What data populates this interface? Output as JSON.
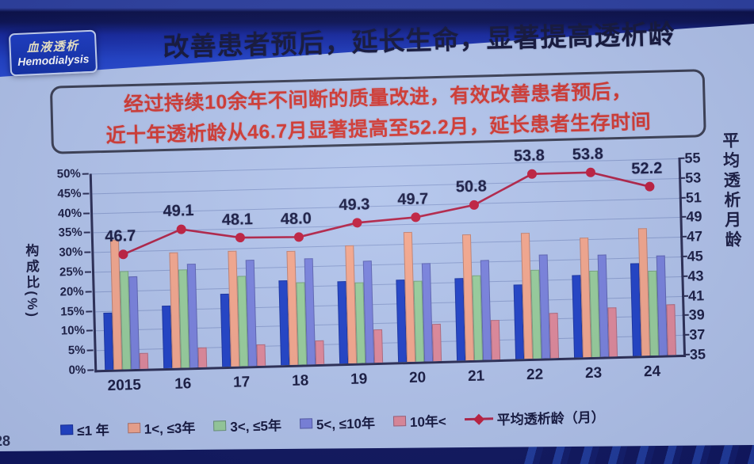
{
  "page": {
    "page_number": "28"
  },
  "badge": {
    "line1": "血液透析",
    "line2": "Hemodialysis"
  },
  "header": {
    "title": "改善患者预后，延长生命，显著提高透析龄"
  },
  "highlight_box": {
    "line1": "经过持续10余年不间断的质量改进，有效改善患者预后，",
    "line2": "近十年透析龄从46.7月显著提高至52.2月，延长患者生存时间"
  },
  "colors": {
    "slide_bg": "#b3c5ec",
    "top_band_blue": "#2142c8",
    "deep_navy": "#0b1048",
    "badge_blue": "#1d3cc0",
    "title_text": "#14173b",
    "highlight_text": "#d23a33",
    "axis_text": "#1b1e44",
    "line_series": "#b22448"
  },
  "chart_data": {
    "type": "bar+line combo",
    "categories": [
      "2015",
      "16",
      "17",
      "18",
      "19",
      "20",
      "21",
      "22",
      "23",
      "24"
    ],
    "series": [
      {
        "name": "≤1 年",
        "type": "bar",
        "color": "#2143c8",
        "values": [
          14.5,
          16,
          18.5,
          21.5,
          21,
          21,
          21,
          19,
          21,
          23.5
        ]
      },
      {
        "name": "1<, ≤3年",
        "type": "bar",
        "color": "#f5a88e",
        "values": [
          33,
          29.5,
          29.5,
          29,
          30,
          33,
          32,
          32,
          30.5,
          32.5
        ]
      },
      {
        "name": "3<, ≤5年",
        "type": "bar",
        "color": "#99cf9c",
        "values": [
          25,
          25,
          23,
          21,
          20.5,
          20.5,
          21.5,
          22.5,
          22,
          21.5
        ]
      },
      {
        "name": "5<, ≤10年",
        "type": "bar",
        "color": "#7a83de",
        "values": [
          23.5,
          26.5,
          27,
          27,
          26,
          25,
          25.5,
          26.5,
          26,
          25.5
        ]
      },
      {
        "name": "10年<",
        "type": "bar",
        "color": "#e18a9b",
        "values": [
          4,
          5,
          5.5,
          6,
          8.5,
          9.5,
          10,
          11.5,
          12.5,
          13
        ]
      },
      {
        "name": "平均透析龄（月）",
        "type": "line",
        "color": "#b22448",
        "marker_color": "#c0203f",
        "axis": "right",
        "values": [
          46.7,
          49.1,
          48.1,
          48.0,
          49.3,
          49.7,
          50.8,
          53.8,
          53.8,
          52.2
        ],
        "point_labels": [
          "46.7",
          "49.1",
          "48.1",
          "48.0",
          "49.3",
          "49.7",
          "50.8",
          "53.8",
          "53.8",
          "52.2"
        ]
      }
    ],
    "left_axis": {
      "label": "构成比(%)",
      "min": 0,
      "max": 50,
      "step": 5,
      "tick_labels": [
        "0%",
        "5%",
        "10%",
        "15%",
        "20%",
        "25%",
        "30%",
        "35%",
        "40%",
        "45%",
        "50%"
      ]
    },
    "right_axis": {
      "label": "平均透析月龄",
      "min": 35,
      "max": 55,
      "step": 2,
      "tick_labels": [
        "35",
        "37",
        "39",
        "41",
        "43",
        "45",
        "47",
        "49",
        "51",
        "53",
        "55"
      ]
    },
    "grid": true,
    "legend_position": "bottom"
  }
}
